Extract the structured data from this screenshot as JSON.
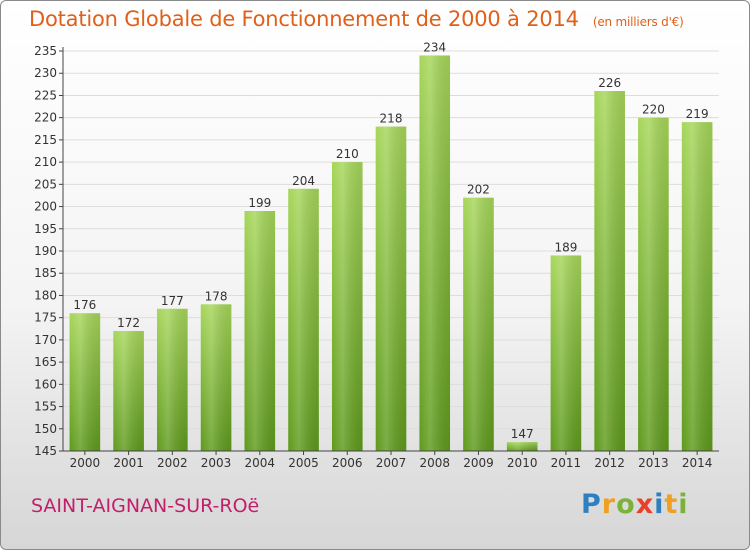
{
  "header": {
    "title": "Dotation Globale de Fonctionnement de 2000 à 2014",
    "subtitle": "(en milliers d'€)"
  },
  "footer": {
    "commune": "SAINT-AIGNAN-SUR-ROë",
    "logo_letters": [
      "P",
      "r",
      "o",
      "x",
      "i",
      "t",
      "i"
    ],
    "logo_colors": [
      "#2d7fc1",
      "#f0a020",
      "#7bb33a",
      "#e8402a",
      "#2d7fc1",
      "#f0a020",
      "#7bb33a"
    ]
  },
  "colors": {
    "bar_top": "#a6d65a",
    "bar_bottom": "#5e9a1c",
    "grid": "#dddddd",
    "axis": "#444444",
    "text": "#333333"
  },
  "chart_data": {
    "type": "bar",
    "title": "Dotation Globale de Fonctionnement de 2000 à 2014",
    "subtitle": "(en milliers d'€)",
    "xlabel": "",
    "ylabel": "",
    "categories": [
      "2000",
      "2001",
      "2002",
      "2003",
      "2004",
      "2005",
      "2006",
      "2007",
      "2008",
      "2009",
      "2010",
      "2011",
      "2012",
      "2013",
      "2014"
    ],
    "values": [
      176,
      172,
      177,
      178,
      199,
      204,
      210,
      218,
      234,
      202,
      147,
      189,
      226,
      220,
      219
    ],
    "ylim": [
      145,
      235
    ],
    "yticks": [
      145,
      150,
      155,
      160,
      165,
      170,
      175,
      180,
      185,
      190,
      195,
      200,
      205,
      210,
      215,
      220,
      225,
      230,
      235
    ],
    "grid": true,
    "data_labels": true
  }
}
